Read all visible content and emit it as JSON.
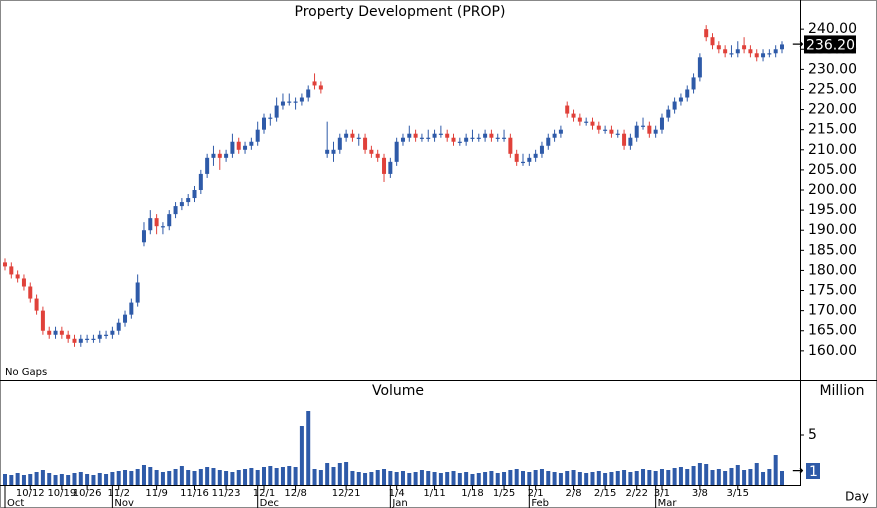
{
  "chart_data": [
    {
      "type": "candlestick",
      "title": "Property Development (PROP)",
      "annotation": "No Gaps",
      "up_color": "#2e5aa8",
      "down_color": "#e0413a",
      "ylim": [
        152.75,
        247.25
      ],
      "yticks": [
        {
          "value": 160,
          "label": "160.00"
        },
        {
          "value": 165,
          "label": "165.00"
        },
        {
          "value": 170,
          "label": "170.00"
        },
        {
          "value": 175,
          "label": "175.00"
        },
        {
          "value": 180,
          "label": "180.00"
        },
        {
          "value": 185,
          "label": "185.00"
        },
        {
          "value": 190,
          "label": "190.00"
        },
        {
          "value": 195,
          "label": "195.00"
        },
        {
          "value": 200,
          "label": "200.00"
        },
        {
          "value": 205,
          "label": "205.00"
        },
        {
          "value": 210,
          "label": "210.00"
        },
        {
          "value": 215,
          "label": "215.00"
        },
        {
          "value": 220,
          "label": "220.00"
        },
        {
          "value": 225,
          "label": "225.00"
        },
        {
          "value": 230,
          "label": "230.00"
        },
        {
          "value": 235,
          "label": "235.00"
        },
        {
          "value": 240,
          "label": "240.00"
        }
      ],
      "last_label": "236.20",
      "candles": [
        [
          182,
          183,
          180,
          181
        ],
        [
          181,
          182,
          178,
          179
        ],
        [
          179,
          180,
          177,
          178
        ],
        [
          178,
          179,
          175,
          176
        ],
        [
          176,
          177,
          172,
          173
        ],
        [
          173,
          174,
          169,
          170
        ],
        [
          170,
          171,
          164,
          165
        ],
        [
          165,
          166,
          163,
          164
        ],
        [
          164,
          166,
          163,
          165
        ],
        [
          165,
          166,
          163,
          164
        ],
        [
          164,
          165,
          162,
          163
        ],
        [
          163,
          164,
          161,
          162
        ],
        [
          162,
          164,
          161,
          163
        ],
        [
          163,
          164,
          162,
          163
        ],
        [
          163,
          164,
          162,
          163
        ],
        [
          163,
          165,
          162,
          164
        ],
        [
          164,
          165,
          163,
          164
        ],
        [
          164,
          166,
          163,
          165
        ],
        [
          165,
          168,
          164,
          167
        ],
        [
          167,
          170,
          166,
          169
        ],
        [
          169,
          173,
          168,
          172
        ],
        [
          172,
          179,
          171,
          177
        ],
        [
          187,
          192,
          186,
          190
        ],
        [
          190,
          195,
          189,
          193
        ],
        [
          193,
          194,
          189,
          191
        ],
        [
          191,
          192,
          189,
          191
        ],
        [
          191,
          195,
          190,
          194
        ],
        [
          194,
          197,
          193,
          196
        ],
        [
          196,
          198,
          195,
          197
        ],
        [
          197,
          199,
          196,
          198
        ],
        [
          198,
          201,
          197,
          200
        ],
        [
          200,
          205,
          199,
          204
        ],
        [
          204,
          209,
          203,
          208
        ],
        [
          208,
          211,
          206,
          209
        ],
        [
          209,
          210,
          205,
          208
        ],
        [
          208,
          210,
          207,
          209
        ],
        [
          209,
          214,
          208,
          212
        ],
        [
          212,
          213,
          209,
          210
        ],
        [
          210,
          212,
          209,
          211
        ],
        [
          211,
          213,
          210,
          212
        ],
        [
          212,
          217,
          211,
          215
        ],
        [
          215,
          219,
          214,
          218
        ],
        [
          218,
          219,
          216,
          218
        ],
        [
          218,
          223,
          217,
          221
        ],
        [
          221,
          224,
          220,
          222
        ],
        [
          222,
          224,
          221,
          222
        ],
        [
          222,
          223,
          220,
          222
        ],
        [
          222,
          224,
          221,
          223
        ],
        [
          223,
          226,
          222,
          225
        ],
        [
          227,
          229,
          225,
          226
        ],
        [
          226,
          227,
          224,
          225
        ],
        [
          209,
          217,
          208,
          210
        ],
        [
          209,
          212,
          207,
          210
        ],
        [
          210,
          214,
          209,
          213
        ],
        [
          213,
          215,
          212,
          214
        ],
        [
          214,
          215,
          212,
          213
        ],
        [
          213,
          214,
          211,
          213
        ],
        [
          213,
          214,
          209,
          210
        ],
        [
          210,
          211,
          208,
          209
        ],
        [
          209,
          210,
          207,
          208
        ],
        [
          208,
          209,
          202,
          204
        ],
        [
          204,
          208,
          203,
          207
        ],
        [
          207,
          213,
          206,
          212
        ],
        [
          212,
          214,
          211,
          213
        ],
        [
          213,
          216,
          212,
          214
        ],
        [
          214,
          215,
          212,
          213
        ],
        [
          213,
          214,
          212,
          213
        ],
        [
          213,
          215,
          212,
          213
        ],
        [
          213,
          215,
          212,
          214
        ],
        [
          214,
          216,
          213,
          214
        ],
        [
          214,
          215,
          212,
          213
        ],
        [
          213,
          214,
          211,
          212
        ],
        [
          212,
          213,
          211,
          212
        ],
        [
          212,
          214,
          211,
          213
        ],
        [
          213,
          215,
          212,
          213
        ],
        [
          213,
          214,
          212,
          213
        ],
        [
          213,
          215,
          212,
          214
        ],
        [
          214,
          215,
          212,
          213
        ],
        [
          213,
          214,
          212,
          213
        ],
        [
          213,
          215,
          212,
          213
        ],
        [
          213,
          214,
          208,
          209
        ],
        [
          209,
          210,
          206,
          207
        ],
        [
          207,
          209,
          206,
          207
        ],
        [
          207,
          209,
          206,
          208
        ],
        [
          208,
          210,
          207,
          209
        ],
        [
          209,
          212,
          208,
          211
        ],
        [
          211,
          214,
          210,
          213
        ],
        [
          213,
          215,
          212,
          214
        ],
        [
          214,
          216,
          213,
          215
        ],
        [
          221,
          222,
          218,
          219
        ],
        [
          219,
          220,
          217,
          218
        ],
        [
          218,
          219,
          216,
          217
        ],
        [
          217,
          218,
          216,
          217
        ],
        [
          217,
          218,
          215,
          216
        ],
        [
          216,
          217,
          214,
          215
        ],
        [
          215,
          216,
          214,
          215
        ],
        [
          215,
          216,
          213,
          214
        ],
        [
          214,
          215,
          213,
          214
        ],
        [
          214,
          215,
          210,
          211
        ],
        [
          211,
          214,
          210,
          213
        ],
        [
          213,
          217,
          212,
          216
        ],
        [
          216,
          218,
          215,
          216
        ],
        [
          216,
          217,
          213,
          214
        ],
        [
          214,
          216,
          213,
          215
        ],
        [
          215,
          219,
          214,
          218
        ],
        [
          218,
          221,
          217,
          220
        ],
        [
          220,
          223,
          219,
          222
        ],
        [
          222,
          224,
          221,
          223
        ],
        [
          223,
          226,
          222,
          225
        ],
        [
          225,
          229,
          224,
          228
        ],
        [
          228,
          234,
          227,
          233
        ],
        [
          240,
          241,
          237,
          238
        ],
        [
          238,
          239,
          235,
          236
        ],
        [
          236,
          237,
          234,
          235
        ],
        [
          235,
          236,
          233,
          234
        ],
        [
          234,
          236,
          233,
          234
        ],
        [
          234,
          237,
          233,
          235
        ],
        [
          236,
          238,
          234,
          235
        ],
        [
          235,
          236,
          233,
          234
        ],
        [
          234,
          235,
          232,
          233
        ],
        [
          233,
          235,
          232,
          234
        ],
        [
          234,
          235,
          233,
          234
        ],
        [
          234,
          236,
          233,
          235
        ],
        [
          235,
          237,
          234,
          236.2
        ]
      ]
    },
    {
      "type": "bar",
      "title": "Volume",
      "ylabel": "Million",
      "xlabel": "Day",
      "color": "#2e5aa8",
      "ylim": [
        0,
        10.5
      ],
      "yticks": [
        5
      ],
      "last_label": "1",
      "values": [
        1.1,
        1.0,
        1.2,
        1.0,
        1.1,
        1.3,
        1.5,
        1.2,
        1.0,
        1.1,
        1.0,
        1.2,
        1.3,
        1.1,
        1.0,
        1.2,
        1.1,
        1.3,
        1.4,
        1.5,
        1.4,
        1.6,
        2.0,
        1.8,
        1.5,
        1.3,
        1.4,
        1.6,
        1.9,
        1.5,
        1.4,
        1.6,
        1.8,
        1.7,
        1.5,
        1.4,
        1.3,
        1.5,
        1.6,
        1.7,
        1.5,
        1.8,
        1.9,
        1.7,
        1.8,
        1.9,
        1.8,
        5.9,
        7.4,
        1.6,
        1.5,
        2.2,
        1.8,
        2.2,
        2.3,
        1.4,
        1.3,
        1.2,
        1.3,
        1.5,
        1.6,
        1.4,
        1.3,
        1.4,
        1.2,
        1.3,
        1.5,
        1.4,
        1.3,
        1.2,
        1.3,
        1.4,
        1.2,
        1.3,
        1.1,
        1.2,
        1.3,
        1.4,
        1.2,
        1.3,
        1.5,
        1.6,
        1.4,
        1.3,
        1.5,
        1.6,
        1.4,
        1.3,
        1.2,
        1.4,
        1.5,
        1.3,
        1.2,
        1.3,
        1.4,
        1.2,
        1.3,
        1.4,
        1.5,
        1.3,
        1.4,
        1.6,
        1.5,
        1.4,
        1.6,
        1.5,
        1.7,
        1.8,
        1.6,
        1.9,
        2.2,
        2.1,
        1.5,
        1.6,
        1.4,
        1.7,
        2.0,
        1.5,
        1.6,
        2.2,
        1.3,
        1.6,
        3.0,
        1.4
      ],
      "xticks": [
        {
          "value": 4,
          "label": "10/12"
        },
        {
          "value": 9,
          "label": "10/19"
        },
        {
          "value": 13,
          "label": "10/26"
        },
        {
          "value": 18,
          "label": "11/2"
        },
        {
          "value": 24,
          "label": "11/9"
        },
        {
          "value": 30,
          "label": "11/16"
        },
        {
          "value": 35,
          "label": "11/23"
        },
        {
          "value": 41,
          "label": "12/1"
        },
        {
          "value": 46,
          "label": "12/8"
        },
        {
          "value": 54,
          "label": "12/21"
        },
        {
          "value": 62,
          "label": "1/4"
        },
        {
          "value": 68,
          "label": "1/11"
        },
        {
          "value": 74,
          "label": "1/18"
        },
        {
          "value": 79,
          "label": "1/25"
        },
        {
          "value": 84,
          "label": "2/1"
        },
        {
          "value": 90,
          "label": "2/8"
        },
        {
          "value": 95,
          "label": "2/15"
        },
        {
          "value": 100,
          "label": "2/22"
        },
        {
          "value": 104,
          "label": "3/1"
        },
        {
          "value": 110,
          "label": "3/8"
        },
        {
          "value": 116,
          "label": "3/15"
        }
      ],
      "month_ticks": [
        {
          "value": 0,
          "label": "Oct"
        },
        {
          "value": 17,
          "label": "Nov"
        },
        {
          "value": 40,
          "label": "Dec"
        },
        {
          "value": 61,
          "label": "Jan"
        },
        {
          "value": 83,
          "label": "Feb"
        },
        {
          "value": 103,
          "label": "Mar"
        }
      ]
    }
  ]
}
